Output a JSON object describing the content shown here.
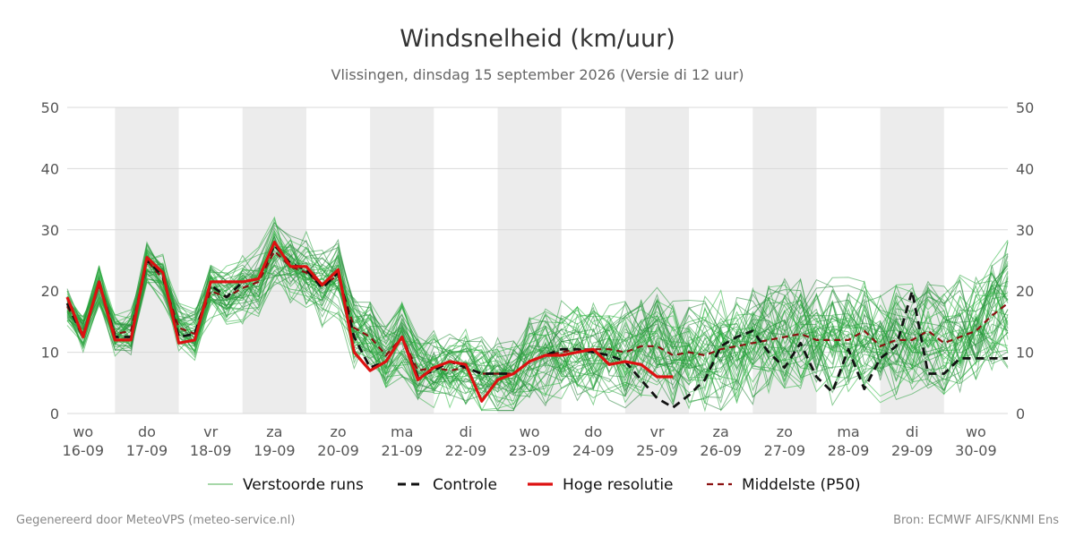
{
  "chart_data": {
    "type": "line",
    "title": "Windsnelheid (km/uur)",
    "subtitle": "Vlissingen, dinsdag 15 september 2026 (Versie di 12 uur)",
    "ylim": [
      0,
      50
    ],
    "yticks": [
      0,
      10,
      20,
      30,
      40,
      50
    ],
    "xlim": [
      0,
      14.75
    ],
    "x_ticks": [
      {
        "x": 0.25,
        "day": "wo",
        "date": "16-09"
      },
      {
        "x": 1.25,
        "day": "do",
        "date": "17-09"
      },
      {
        "x": 2.25,
        "day": "vr",
        "date": "18-09"
      },
      {
        "x": 3.25,
        "day": "za",
        "date": "19-09"
      },
      {
        "x": 4.25,
        "day": "zo",
        "date": "20-09"
      },
      {
        "x": 5.25,
        "day": "ma",
        "date": "21-09"
      },
      {
        "x": 6.25,
        "day": "di",
        "date": "22-09"
      },
      {
        "x": 7.25,
        "day": "wo",
        "date": "23-09"
      },
      {
        "x": 8.25,
        "day": "do",
        "date": "24-09"
      },
      {
        "x": 9.25,
        "day": "vr",
        "date": "25-09"
      },
      {
        "x": 10.25,
        "day": "za",
        "date": "26-09"
      },
      {
        "x": 11.25,
        "day": "zo",
        "date": "27-09"
      },
      {
        "x": 12.25,
        "day": "ma",
        "date": "28-09"
      },
      {
        "x": 13.25,
        "day": "di",
        "date": "29-09"
      },
      {
        "x": 14.25,
        "day": "wo",
        "date": "30-09"
      }
    ],
    "shaded_days": [
      [
        0.75,
        1.75
      ],
      [
        2.75,
        3.75
      ],
      [
        4.75,
        5.75
      ],
      [
        6.75,
        7.75
      ],
      [
        8.75,
        9.75
      ],
      [
        10.75,
        11.75
      ],
      [
        12.75,
        13.75
      ],
      [
        14.75,
        15.75
      ]
    ],
    "grid": true,
    "legend_position": "bottom",
    "legend": [
      {
        "label": "Verstoorde runs",
        "color": "#4caf50",
        "style": "thin"
      },
      {
        "label": "Controle",
        "color": "#111111",
        "style": "dashed"
      },
      {
        "label": "Hoge resolutie",
        "color": "#dd1111",
        "style": "solid"
      },
      {
        "label": "Middelste (P50)",
        "color": "#8b1010",
        "style": "dashed"
      }
    ],
    "series": [
      {
        "key": "controle",
        "color": "#111111",
        "x": [
          0,
          0.25,
          0.5,
          0.75,
          1,
          1.25,
          1.5,
          1.75,
          2,
          2.25,
          2.5,
          2.75,
          3,
          3.25,
          3.5,
          3.75,
          4,
          4.25,
          4.5,
          4.75,
          5,
          5.25,
          5.5,
          5.75,
          6,
          6.25,
          6.5,
          6.75,
          7,
          7.25,
          7.5,
          7.75,
          8,
          8.25,
          8.5,
          8.75,
          9,
          9.25,
          9.5,
          9.75,
          10,
          10.25,
          10.5,
          10.75,
          11,
          11.25,
          11.5,
          11.75,
          12,
          12.25,
          12.5,
          12.75,
          13,
          13.25,
          13.5,
          13.75,
          14,
          14.25,
          14.5,
          14.75
        ],
        "values": [
          18,
          12.5,
          21.5,
          12.5,
          12.5,
          25,
          22.5,
          12.5,
          13,
          21,
          19,
          21.5,
          22,
          27.5,
          24.5,
          23.5,
          20.5,
          23,
          12.5,
          7.5,
          8.5,
          12.5,
          6,
          7,
          8.5,
          7.5,
          6.5,
          6.5,
          6.5,
          8.5,
          9.5,
          10.5,
          10.5,
          10,
          9.5,
          8.5,
          5.5,
          2.5,
          1,
          3,
          5.5,
          11,
          12.5,
          13.5,
          10,
          7.5,
          11.5,
          6,
          3.5,
          10.5,
          4,
          9,
          11,
          20,
          6.5,
          6.5,
          9,
          9,
          9,
          9
        ]
      },
      {
        "key": "hoge_resolutie",
        "color": "#dd1111",
        "x": [
          0,
          0.25,
          0.5,
          0.75,
          1,
          1.25,
          1.5,
          1.75,
          2,
          2.25,
          2.5,
          2.75,
          3,
          3.25,
          3.5,
          3.75,
          4,
          4.25,
          4.5,
          4.75,
          5,
          5.25,
          5.5,
          5.75,
          6,
          6.25,
          6.5,
          6.75,
          7,
          7.25,
          7.5,
          7.75,
          8,
          8.25,
          8.5,
          8.75,
          9,
          9.25,
          9.5
        ],
        "values": [
          19,
          12.5,
          21.5,
          12,
          12,
          25.5,
          23,
          11.5,
          12,
          21.5,
          21.5,
          21.5,
          22,
          28,
          24,
          24,
          21,
          23.5,
          10,
          7,
          8.5,
          12.5,
          5.5,
          7.5,
          8.5,
          8,
          2,
          5.5,
          6.5,
          8.5,
          9.5,
          9.5,
          10,
          10.5,
          8,
          8.5,
          8,
          6,
          6
        ]
      },
      {
        "key": "middelste",
        "color": "#8b1010",
        "x": [
          0,
          0.25,
          0.5,
          0.75,
          1,
          1.25,
          1.5,
          1.75,
          2,
          2.25,
          2.5,
          2.75,
          3,
          3.25,
          3.5,
          3.75,
          4,
          4.25,
          4.5,
          4.75,
          5,
          5.25,
          5.5,
          5.75,
          6,
          6.25,
          6.5,
          6.75,
          7,
          7.25,
          7.5,
          7.75,
          8,
          8.25,
          8.5,
          8.75,
          9,
          9.25,
          9.5,
          9.75,
          10,
          10.25,
          10.5,
          10.75,
          11,
          11.25,
          11.5,
          11.75,
          12,
          12.25,
          12.5,
          12.75,
          13,
          13.25,
          13.5,
          13.75,
          14,
          14.25,
          14.5,
          14.75
        ],
        "values": [
          17.5,
          13,
          21,
          13,
          13.5,
          25,
          22,
          14,
          13,
          20,
          19,
          20.5,
          21.5,
          26.5,
          24,
          23,
          21,
          22.5,
          14,
          12.5,
          9.5,
          12.5,
          7,
          7.5,
          7,
          7.5,
          6.5,
          6.5,
          6.5,
          8.5,
          9.5,
          10,
          10.5,
          10.5,
          10.5,
          10,
          11,
          11,
          9.5,
          10,
          9.5,
          10.5,
          11,
          11.5,
          12,
          12.5,
          13,
          12,
          12,
          12,
          13.5,
          11,
          12,
          12,
          13.5,
          11.5,
          12.5,
          13.5,
          16,
          18
        ]
      }
    ]
  },
  "footer": {
    "left": "Gegenereerd door MeteoVPS (meteo-service.nl)",
    "right": "Bron: ECMWF AIFS/KNMI Ens"
  }
}
